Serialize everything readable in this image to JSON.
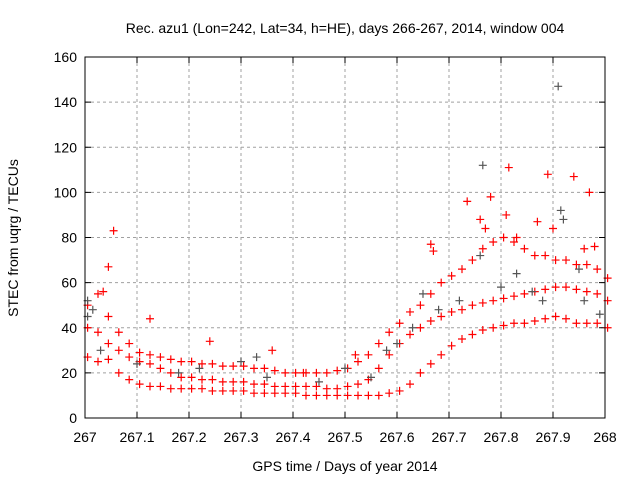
{
  "chart_data": {
    "type": "scatter",
    "title": "Rec. azu1 (Lon=242, Lat=34, h=HE), days 266-267, 2014, window 004",
    "xlabel": "GPS time / Days of year 2014",
    "ylabel": "STEC from uqrg / TECUs",
    "xlim": [
      267,
      268
    ],
    "ylim": [
      0,
      160
    ],
    "xticks": [
      267,
      267.1,
      267.2,
      267.3,
      267.4,
      267.5,
      267.6,
      267.7,
      267.8,
      267.9,
      268
    ],
    "xtick_labels": [
      "267",
      "267.1",
      "267.2",
      "267.3",
      "267.4",
      "267.5",
      "267.6",
      "267.7",
      "267.8",
      "267.9",
      "268"
    ],
    "yticks": [
      0,
      20,
      40,
      60,
      80,
      100,
      120,
      140,
      160
    ],
    "ytick_labels": [
      "0",
      "20",
      "40",
      "60",
      "80",
      "100",
      "120",
      "140",
      "160"
    ],
    "grid": true,
    "marker": "+",
    "series": [
      {
        "name": "red",
        "color": "#ff0000",
        "x_start": 267.0,
        "x_step": 0.02,
        "bands": [
          [
            27,
            25,
            26,
            20,
            17,
            15,
            14,
            14,
            13,
            13,
            13,
            13,
            12,
            12,
            12,
            12,
            11,
            11,
            11,
            11,
            11,
            10,
            10,
            10,
            10,
            10,
            10,
            10,
            10,
            11,
            12,
            15,
            20,
            24,
            28,
            32,
            35,
            37,
            39,
            40,
            41,
            42,
            42,
            43,
            44,
            45,
            44,
            42,
            42,
            42,
            40
          ],
          [
            40,
            38,
            33,
            30,
            27,
            25,
            24,
            22,
            20,
            18,
            18,
            17,
            17,
            16,
            16,
            16,
            15,
            15,
            14,
            14,
            14,
            14,
            14,
            13,
            13,
            14,
            15,
            17,
            22,
            28,
            33,
            37,
            40,
            43,
            45,
            47,
            48,
            50,
            51,
            52,
            53,
            54,
            55,
            56,
            57,
            58,
            58,
            57,
            56,
            55,
            52
          ],
          [
            50,
            55,
            45,
            38,
            33,
            29,
            28,
            27,
            26,
            25,
            25,
            24,
            24,
            23,
            23,
            23,
            22,
            22,
            21,
            20,
            20,
            20,
            20,
            20,
            21,
            22,
            25,
            28,
            33,
            38,
            42,
            47,
            50,
            55,
            60,
            63,
            66,
            70,
            75,
            78,
            80,
            78,
            75,
            72,
            72,
            70,
            70,
            68,
            68,
            66,
            62
          ]
        ],
        "points": [
          [
            267.055,
            83
          ],
          [
            267.045,
            67
          ],
          [
            267.125,
            44
          ],
          [
            267.035,
            56
          ],
          [
            267.735,
            96
          ],
          [
            267.78,
            98
          ],
          [
            267.815,
            111
          ],
          [
            267.89,
            108
          ],
          [
            267.94,
            107
          ],
          [
            267.97,
            100
          ],
          [
            267.9,
            84
          ],
          [
            267.81,
            90
          ],
          [
            267.665,
            77
          ],
          [
            267.67,
            74
          ],
          [
            267.76,
            88
          ],
          [
            267.77,
            84
          ],
          [
            267.83,
            80
          ],
          [
            267.87,
            87
          ],
          [
            267.96,
            75
          ],
          [
            267.98,
            76
          ],
          [
            267.24,
            34
          ],
          [
            267.36,
            30
          ],
          [
            267.42,
            20
          ],
          [
            267.52,
            28
          ]
        ]
      },
      {
        "name": "grey",
        "color": "#555555",
        "points": [
          [
            267.005,
            45
          ],
          [
            267.005,
            52
          ],
          [
            267.015,
            48
          ],
          [
            267.03,
            30
          ],
          [
            267.1,
            24
          ],
          [
            267.18,
            20
          ],
          [
            267.22,
            22
          ],
          [
            267.3,
            25
          ],
          [
            267.33,
            27
          ],
          [
            267.35,
            18
          ],
          [
            267.45,
            16
          ],
          [
            267.5,
            22
          ],
          [
            267.55,
            18
          ],
          [
            267.58,
            30
          ],
          [
            267.6,
            33
          ],
          [
            267.63,
            40
          ],
          [
            267.65,
            55
          ],
          [
            267.68,
            48
          ],
          [
            267.72,
            52
          ],
          [
            267.765,
            112
          ],
          [
            267.76,
            72
          ],
          [
            267.8,
            58
          ],
          [
            267.83,
            64
          ],
          [
            267.86,
            56
          ],
          [
            267.88,
            52
          ],
          [
            267.91,
            147
          ],
          [
            267.915,
            92
          ],
          [
            267.92,
            88
          ],
          [
            267.95,
            66
          ],
          [
            267.96,
            52
          ],
          [
            267.99,
            46
          ]
        ]
      }
    ]
  }
}
